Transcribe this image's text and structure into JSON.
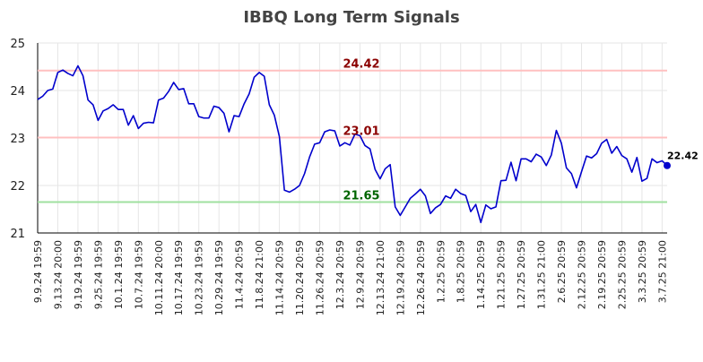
{
  "chart_data": {
    "type": "line",
    "title": "IBBQ Long Term Signals",
    "xlabel": "",
    "ylabel": "",
    "ylim": [
      21,
      25
    ],
    "yticks": [
      21,
      22,
      23,
      24,
      25
    ],
    "grid": true,
    "x_tick_labels": [
      "9.9.24 19:59",
      "9.13.24 20:00",
      "9.19.24 19:59",
      "9.25.24 19:59",
      "10.1.24 19:59",
      "10.7.24 19:59",
      "10.11.24 20:00",
      "10.17.24 19:59",
      "10.23.24 19:59",
      "10.29.24 19:59",
      "11.4.24 20:59",
      "11.8.24 21:00",
      "11.14.24 20:59",
      "11.20.24 20:59",
      "11.26.24 20:59",
      "12.3.24 20:59",
      "12.9.24 20:59",
      "12.13.24 21:00",
      "12.19.24 20:59",
      "12.26.24 20:59",
      "1.2.25 20:59",
      "1.8.25 20:59",
      "1.14.25 20:59",
      "1.21.25 20:59",
      "1.27.25 20:59",
      "1.31.25 21:00",
      "2.6.25 20:59",
      "2.12.25 20:59",
      "2.19.25 20:59",
      "2.25.25 20:59",
      "3.3.25 20:59",
      "3.7.25 21:00"
    ],
    "tick_every": 4,
    "series": [
      {
        "color": "#0000cc",
        "values": [
          23.81,
          23.88,
          24.0,
          24.03,
          24.38,
          24.43,
          24.36,
          24.31,
          24.52,
          24.31,
          23.8,
          23.7,
          23.37,
          23.57,
          23.62,
          23.7,
          23.6,
          23.6,
          23.27,
          23.47,
          23.2,
          23.31,
          23.33,
          23.32,
          23.8,
          23.84,
          23.98,
          24.17,
          24.02,
          24.04,
          23.72,
          23.72,
          23.45,
          23.42,
          23.42,
          23.67,
          23.64,
          23.52,
          23.13,
          23.47,
          23.45,
          23.72,
          23.93,
          24.28,
          24.38,
          24.3,
          23.7,
          23.48,
          23.03,
          21.9,
          21.86,
          21.92,
          22.0,
          22.25,
          22.6,
          22.87,
          22.9,
          23.13,
          23.17,
          23.15,
          22.83,
          22.9,
          22.85,
          23.08,
          23.05,
          22.84,
          22.77,
          22.34,
          22.14,
          22.35,
          22.44,
          21.55,
          21.37,
          21.55,
          21.73,
          21.82,
          21.92,
          21.78,
          21.41,
          21.53,
          21.6,
          21.78,
          21.73,
          21.92,
          21.83,
          21.79,
          21.45,
          21.6,
          21.22,
          21.59,
          21.51,
          21.55,
          22.1,
          22.11,
          22.49,
          22.1,
          22.56,
          22.56,
          22.5,
          22.66,
          22.6,
          22.42,
          22.64,
          23.16,
          22.89,
          22.37,
          22.25,
          21.95,
          22.29,
          22.62,
          22.58,
          22.67,
          22.89,
          22.97,
          22.68,
          22.82,
          22.63,
          22.56,
          22.28,
          22.59,
          22.09,
          22.15,
          22.56,
          22.48,
          22.52,
          22.42
        ]
      }
    ],
    "thresholds": [
      {
        "value": 24.42,
        "label": "24.42",
        "line_color": "#ffc0c0",
        "text_color": "#8b0000"
      },
      {
        "value": 23.01,
        "label": "23.01",
        "line_color": "#ffc0c0",
        "text_color": "#8b0000"
      },
      {
        "value": 21.65,
        "label": "21.65",
        "line_color": "#a0e0a0",
        "text_color": "#006400"
      }
    ],
    "last_value_label": "22.42",
    "last_point_color": "#0000cc"
  }
}
